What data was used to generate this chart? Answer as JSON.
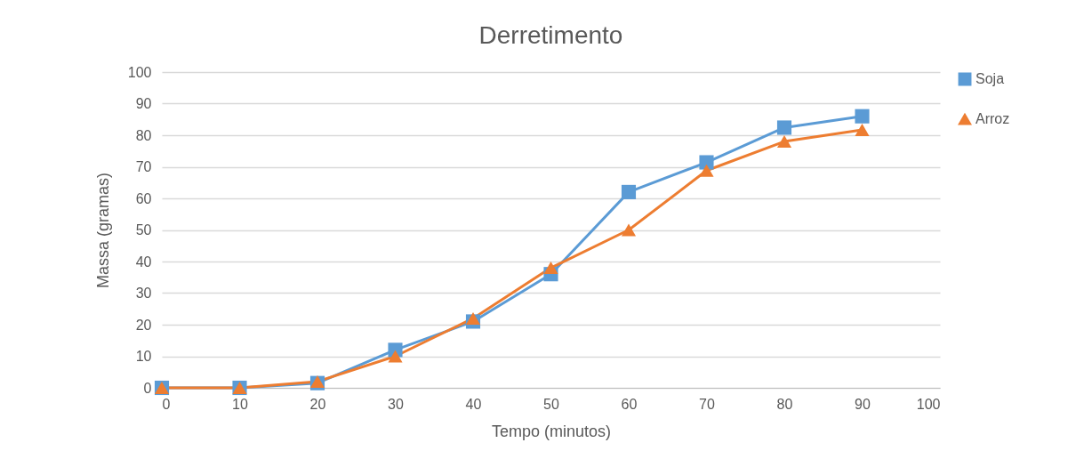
{
  "chart_data": {
    "type": "line",
    "title": "Derretimento",
    "xlabel": "Tempo (minutos)",
    "ylabel": "Massa (gramas)",
    "x": [
      0,
      10,
      20,
      30,
      40,
      50,
      60,
      70,
      80,
      90
    ],
    "series": [
      {
        "name": "Soja",
        "color": "#5b9bd5",
        "marker": "square",
        "values": [
          0,
          0,
          1.5,
          12,
          21,
          36,
          62,
          71.4,
          82.4,
          86
        ]
      },
      {
        "name": "Arroz",
        "color": "#ed7d31",
        "marker": "triangle",
        "values": [
          0,
          0,
          2,
          10,
          22,
          38,
          50,
          68.8,
          78,
          81.7
        ]
      }
    ],
    "xlim": [
      0,
      100
    ],
    "xticks": [
      0,
      10,
      20,
      30,
      40,
      50,
      60,
      70,
      80,
      90,
      100
    ],
    "ylim": [
      0,
      100
    ],
    "yticks": [
      0,
      10,
      20,
      30,
      40,
      50,
      60,
      70,
      80,
      90,
      100
    ],
    "grid": "y",
    "legend": "right",
    "line_style": "solid"
  }
}
